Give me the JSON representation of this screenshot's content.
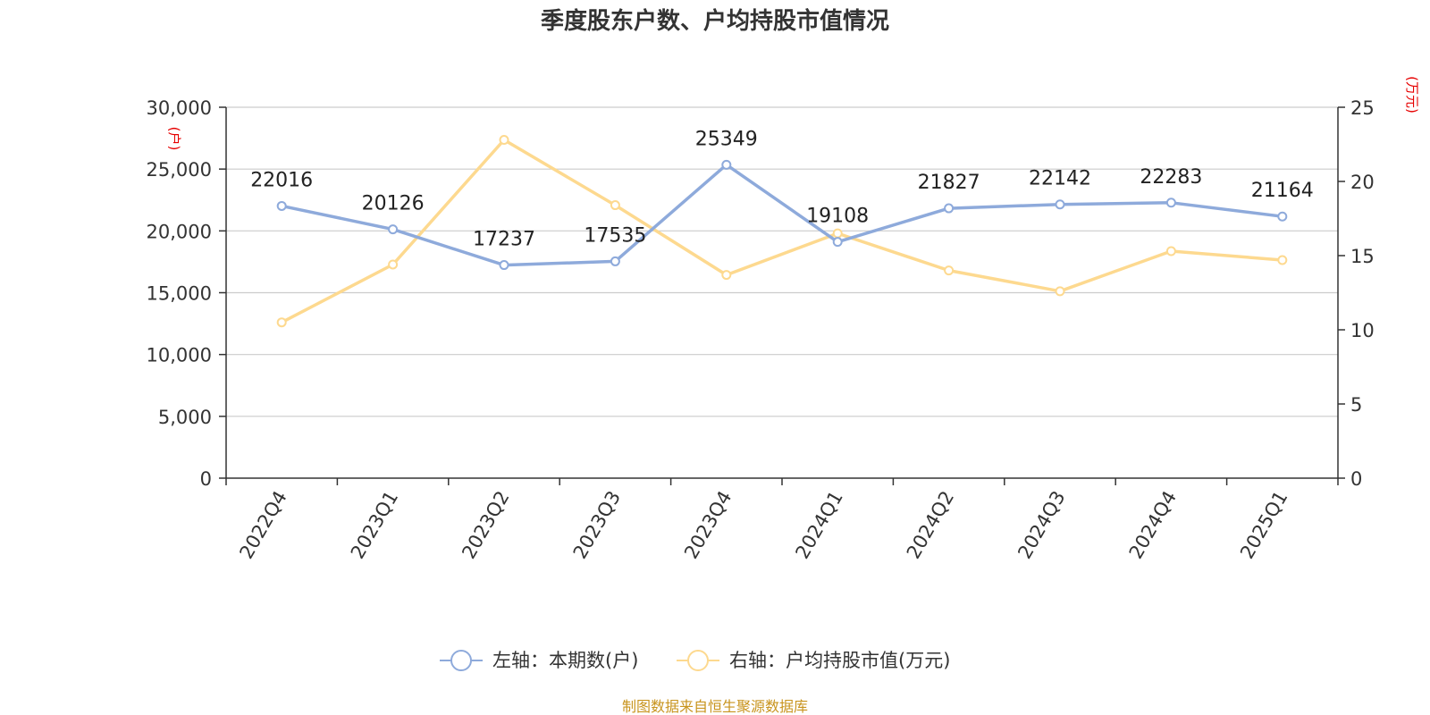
{
  "chart_data": {
    "type": "line",
    "title": "季度股东户数、户均持股市值情况",
    "categories": [
      "2022Q4",
      "2023Q1",
      "2023Q2",
      "2023Q3",
      "2023Q4",
      "2024Q1",
      "2024Q2",
      "2024Q3",
      "2024Q4",
      "2025Q1"
    ],
    "series": [
      {
        "name": "左轴：本期数(户)",
        "axis": "left",
        "color": "#8eaadb",
        "values": [
          22016,
          20126,
          17237,
          17535,
          25349,
          19108,
          21827,
          22142,
          22283,
          21164
        ],
        "show_labels": true
      },
      {
        "name": "右轴：户均持股市值(万元)",
        "axis": "right",
        "color": "#fdd98f",
        "values": [
          10.5,
          14.4,
          22.8,
          18.4,
          13.7,
          16.5,
          14.0,
          12.6,
          15.3,
          14.7
        ],
        "show_labels": false
      }
    ],
    "left_axis": {
      "unit": "(户)",
      "ylim": [
        0,
        30000
      ],
      "ticks": [
        0,
        5000,
        10000,
        15000,
        20000,
        25000,
        30000
      ],
      "tick_labels": [
        "0",
        "5,000",
        "10,000",
        "15,000",
        "20,000",
        "25,000",
        "30,000"
      ]
    },
    "right_axis": {
      "unit": "(万元)",
      "ylim": [
        0,
        25
      ],
      "ticks": [
        0,
        5,
        10,
        15,
        20,
        25
      ],
      "tick_labels": [
        "0",
        "5",
        "10",
        "15",
        "20",
        "25"
      ]
    },
    "grid": true,
    "legend_position": "bottom-center",
    "source": "制图数据来自恒生聚源数据库"
  },
  "colors": {
    "axis": "#333333",
    "grid": "#cccccc",
    "unit": "#e60000",
    "source": "#c8941e"
  }
}
